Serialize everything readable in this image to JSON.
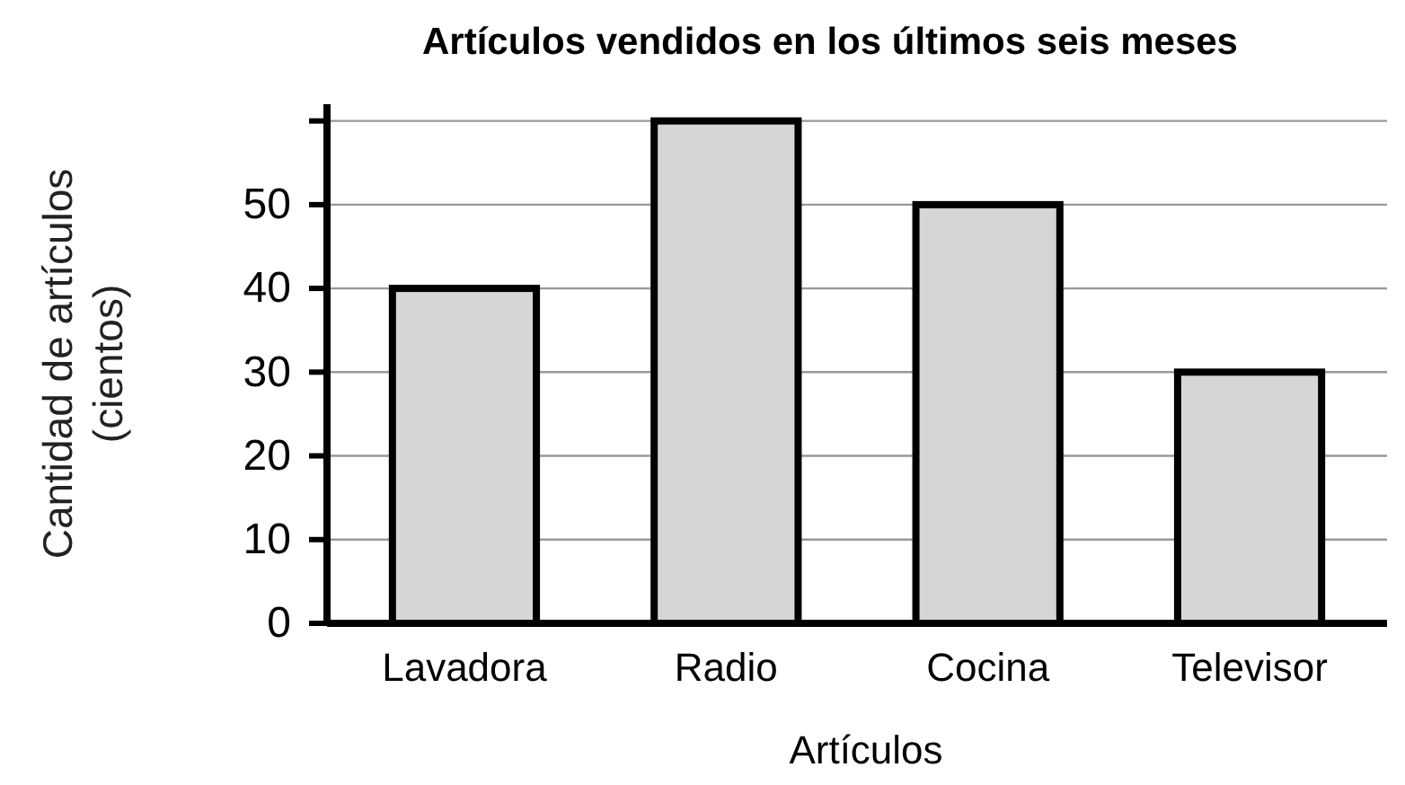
{
  "chart_data": {
    "type": "bar",
    "title": "Artículos vendidos en los últimos seis meses",
    "xlabel": "Artículos",
    "ylabel": "Cantidad de artículos\n(cientos)",
    "categories": [
      "Lavadora",
      "Radio",
      "Cocina",
      "Televisor"
    ],
    "values": [
      40,
      60,
      50,
      30
    ],
    "color": "#d6d6d6",
    "ylim": [
      0,
      62
    ],
    "yticks": [
      0,
      10,
      20,
      30,
      40,
      50,
      {
        "value": 60,
        "label": null
      }
    ],
    "grid": "y"
  }
}
